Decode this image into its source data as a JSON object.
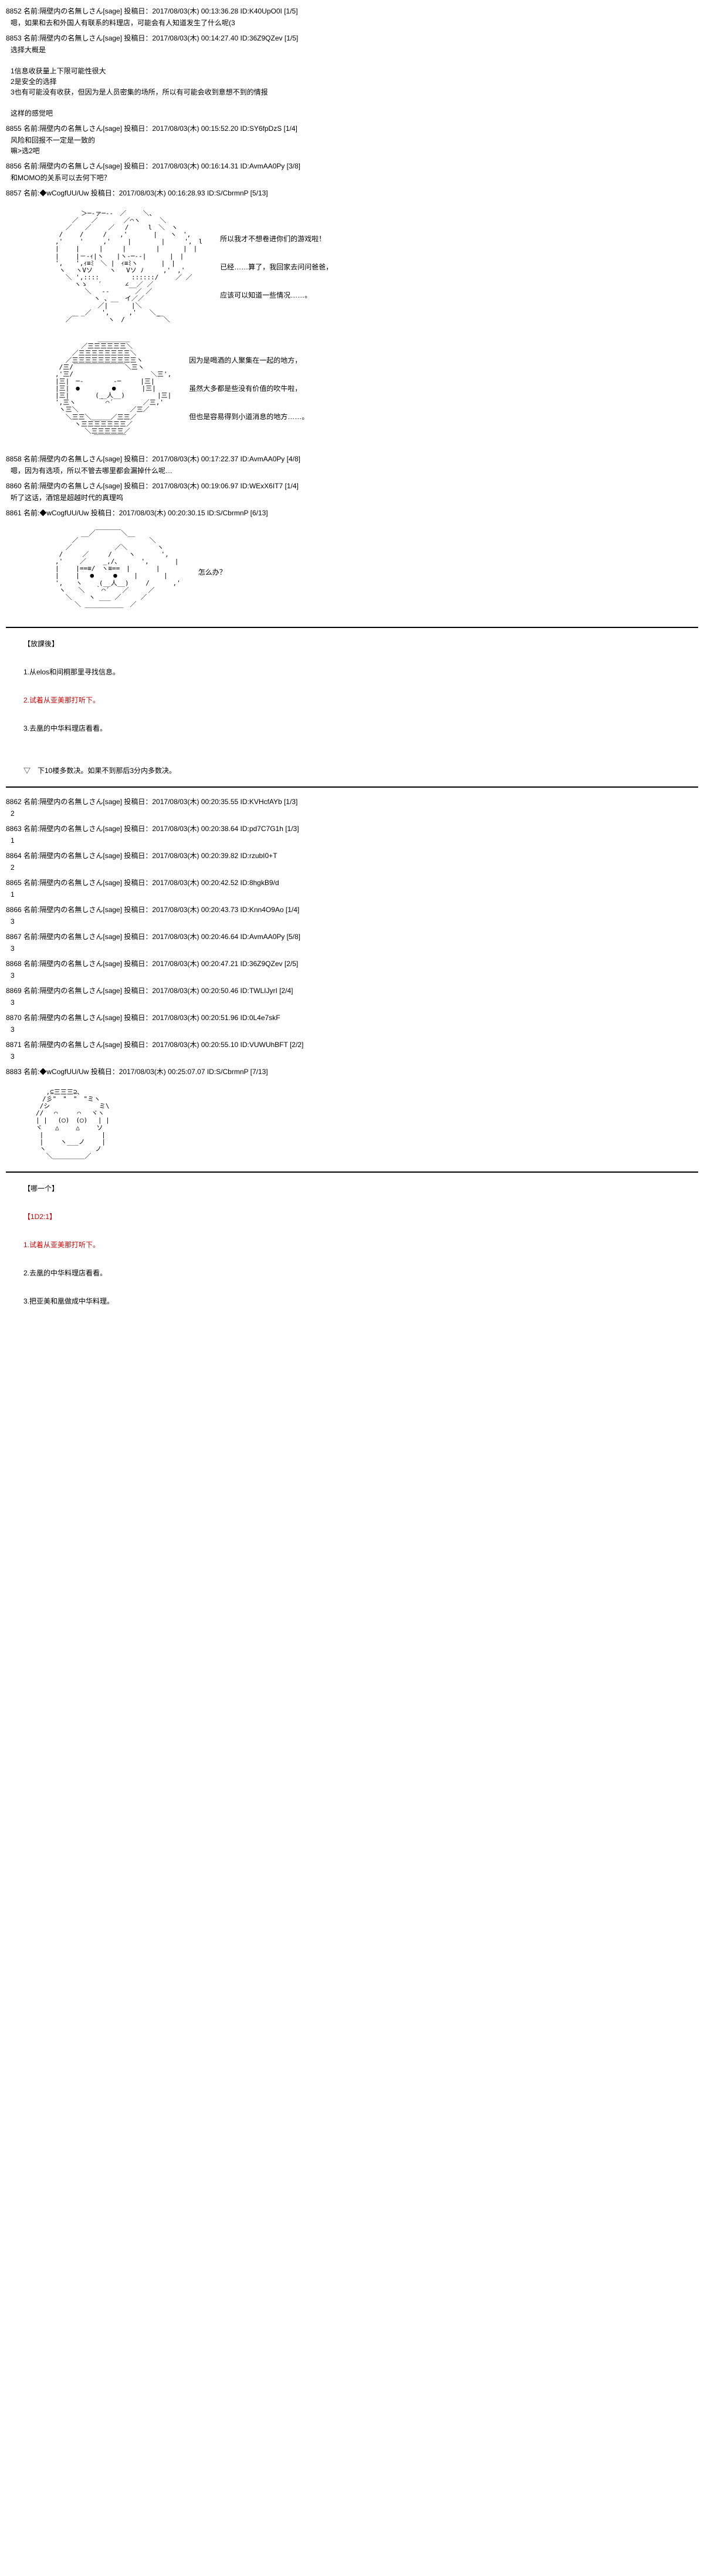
{
  "posts": [
    {
      "num": "8852",
      "name": "隔壁内の名無しさん[sage]",
      "date": "2017/08/03(木) 00:13:36.28",
      "id": "K40UpO0I",
      "count": "[1/5]",
      "body": "嗯，如果和去和外国人有联系的料理店，可能会有人知道发生了什么呢(3"
    },
    {
      "num": "8853",
      "name": "隔壁内の名無しさん[sage]",
      "date": "2017/08/03(木) 00:14:27.40",
      "id": "36Z9QZev",
      "count": "[1/5]",
      "body": "选择大概是\n\n1信息收获量上下限可能性很大\n2是安全的选择\n3也有可能没有收获，但因为是人员密集的场所，所以有可能会收到意想不到的情报\n\n这样的感觉吧"
    },
    {
      "num": "8855",
      "name": "隔壁内の名無しさん[sage]",
      "date": "2017/08/03(木) 00:15:52.20",
      "id": "SY6fpDzS",
      "count": "[1/4]",
      "body": "风险和回报不一定是一致的\n嘛>选2吧"
    },
    {
      "num": "8856",
      "name": "隔壁内の名無しさん[sage]",
      "date": "2017/08/03(木) 00:16:14.31",
      "id": "AvmAA0Py",
      "count": "[3/8]",
      "body": "和MOMO的关系可以去何下吧？"
    },
    {
      "num": "8857",
      "name": "◆wCogfUU/Uw",
      "date": "2017/08/03(木) 00:16:28.93",
      "id": "S/CbrmnP",
      "count": "[5/13]",
      "body": ""
    }
  ],
  "aa1_text": {
    "l1": "所以我才不想卷进你们的游戏啦！",
    "l2": "已经……算了，我回家去问问爸爸，",
    "l3": "应该可以知道一些情况……。"
  },
  "aa2_text": {
    "l1": "因为是喝酒的人聚集在一起的地方，",
    "l2": "虽然大多都是些没有价值的吹牛啦，",
    "l3": "但也是容易得到小道消息的地方……。"
  },
  "posts2": [
    {
      "num": "8858",
      "name": "隔壁内の名無しさん[sage]",
      "date": "2017/08/03(木) 00:17:22.37",
      "id": "AvmAA0Py",
      "count": "[4/8]",
      "body": "嗯，因为有选项，所以不管去哪里都会漏掉什么呢…"
    },
    {
      "num": "8860",
      "name": "隔壁内の名無しさん[sage]",
      "date": "2017/08/03(木) 00:19:06.97",
      "id": "WExX6IT7",
      "count": "[1/4]",
      "body": "听了这话，酒馆是超越时代的真理呜"
    },
    {
      "num": "8861",
      "name": "◆wCogfUU/Uw",
      "date": "2017/08/03(木) 00:20:30.15",
      "id": "S/CbrmnP",
      "count": "[6/13]",
      "body": ""
    }
  ],
  "aa3_text": "怎么办？",
  "section1": {
    "title": "【放課後】",
    "o1": "1.从elos和间桐那里寻找信息。",
    "o2": "2.试着从亚美那打听下。",
    "o3": "3.去凰的中华料理店看看。",
    "note": "▽　下10楼多数决。如果不到那后3分内多数决。"
  },
  "posts3": [
    {
      "num": "8862",
      "name": "隔壁内の名無しさん[sage]",
      "date": "2017/08/03(木) 00:20:35.55",
      "id": "KVHcfAYb",
      "count": "[1/3]",
      "body": "2"
    },
    {
      "num": "8863",
      "name": "隔壁内の名無しさん[sage]",
      "date": "2017/08/03(木) 00:20:38.64",
      "id": "pd7C7G1h",
      "count": "[1/3]",
      "body": "1"
    },
    {
      "num": "8864",
      "name": "隔壁内の名無しさん[sage]",
      "date": "2017/08/03(木) 00:20:39.82",
      "id": "rzubI0+T",
      "count": "",
      "body": "2"
    },
    {
      "num": "8865",
      "name": "隔壁内の名無しさん[sage]",
      "date": "2017/08/03(木) 00:20:42.52",
      "id": "8hgkB9/d",
      "count": "",
      "body": "1"
    },
    {
      "num": "8866",
      "name": "隔壁内の名無しさん[sage]",
      "date": "2017/08/03(木) 00:20:43.73",
      "id": "Knn4O9Ao",
      "count": "[1/4]",
      "body": "3"
    },
    {
      "num": "8867",
      "name": "隔壁内の名無しさん[sage]",
      "date": "2017/08/03(木) 00:20:46.64",
      "id": "AvmAA0Py",
      "count": "[5/8]",
      "body": "3"
    },
    {
      "num": "8868",
      "name": "隔壁内の名無しさん[sage]",
      "date": "2017/08/03(木) 00:20:47.21",
      "id": "36Z9QZev",
      "count": "[2/5]",
      "body": "3"
    },
    {
      "num": "8869",
      "name": "隔壁内の名無しさん[sage]",
      "date": "2017/08/03(木) 00:20:50.46",
      "id": "TWLIJyrI",
      "count": "[2/4]",
      "body": "3"
    },
    {
      "num": "8870",
      "name": "隔壁内の名無しさん[sage]",
      "date": "2017/08/03(木) 00:20:51.96",
      "id": "0L4e7skF",
      "count": "",
      "body": "3"
    },
    {
      "num": "8871",
      "name": "隔壁内の名無しさん[sage]",
      "date": "2017/08/03(木) 00:20:55.10",
      "id": "VUWUhBFT",
      "count": "[2/2]",
      "body": "3"
    },
    {
      "num": "8883",
      "name": "◆wCogfUU/Uw",
      "date": "2017/08/03(木) 00:25:07.07",
      "id": "S/CbrmnP",
      "count": "[7/13]",
      "body": ""
    }
  ],
  "section2": {
    "title": "【哪一个】",
    "dice": "【1D2:1】",
    "o1": "1.试着从亚美那打听下。",
    "o2": "2.去凰的中华料理店看看。",
    "o3": "3.把亚美和凰做成中华料理。"
  },
  "aa_face": "　　 ,⊆三三三⊇､\n　　/彡\"　\"　\"　\"ミヽ\n　 /シ　　　　　　　 ミ\\\n　//　 ⌒　　　⌒　 ヾヽ\n　| |　 (◯)　(◯)　 | |\n　ヾ　　△　　 △　　 ソ\n　 |　　　　　　　　　|\n　 |　　 ヽ___ノ　　 |\n　 ヽ　　　　　　　 ノ\n　　 ＼＿＿＿＿＿／"
}
